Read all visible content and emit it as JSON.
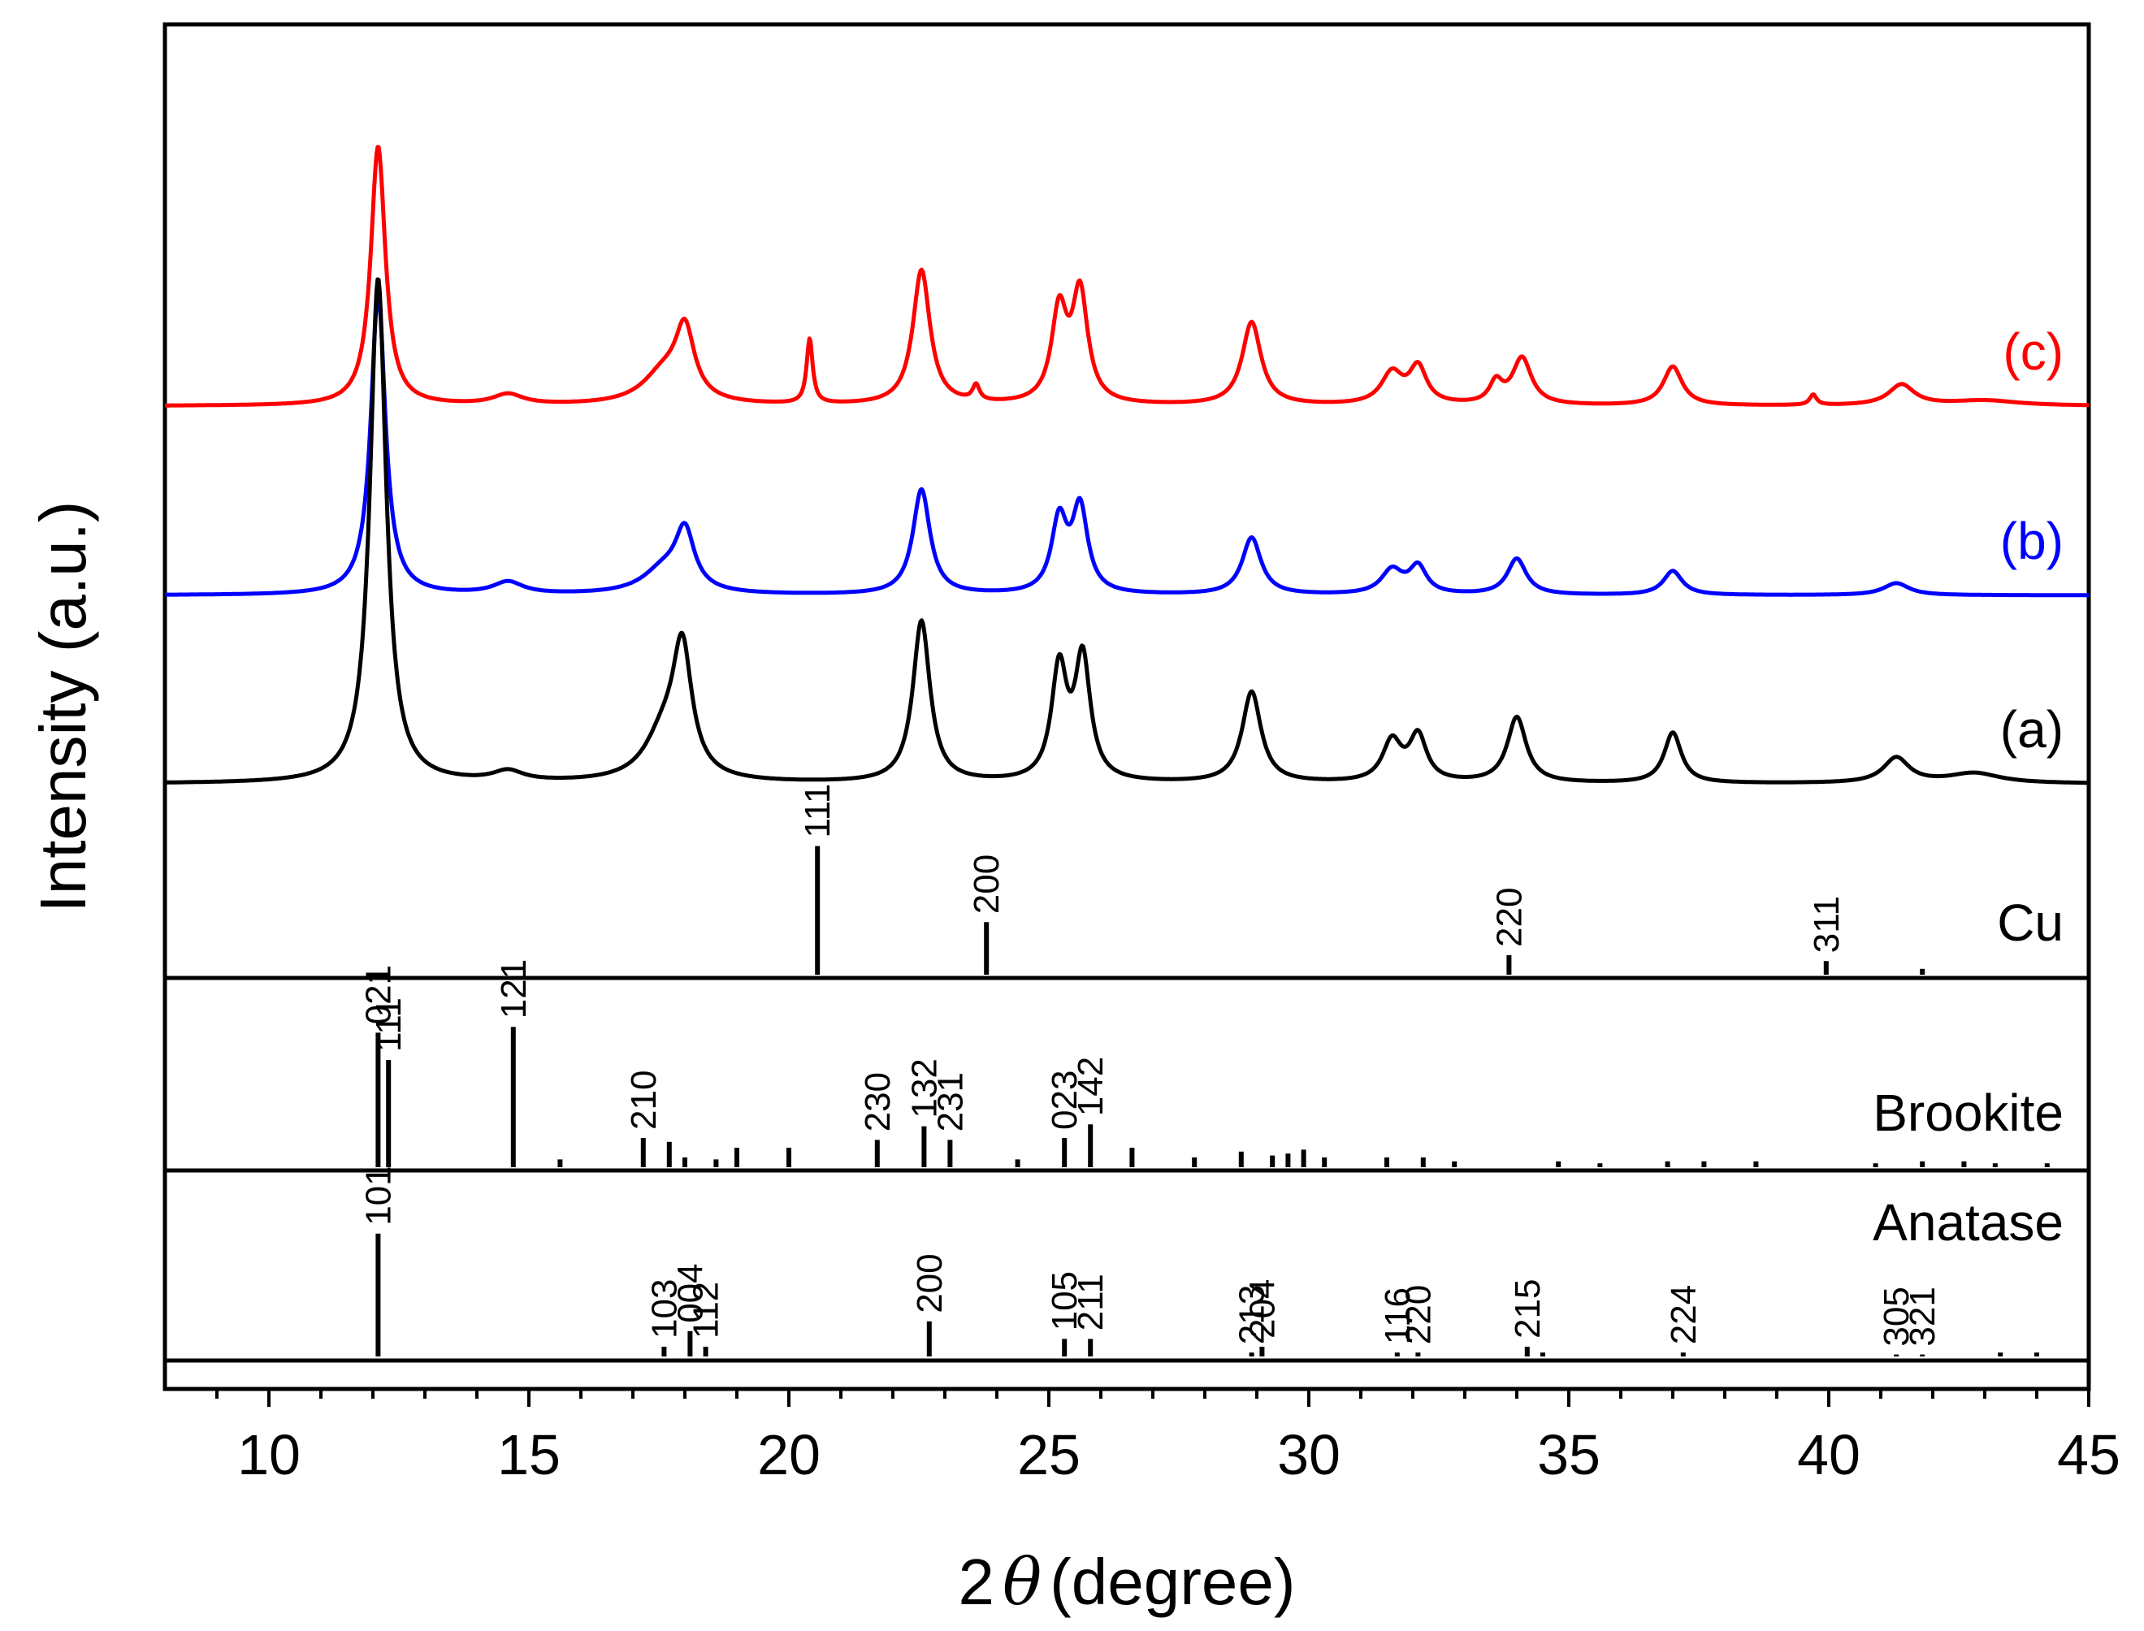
{
  "chart_data": {
    "type": "line",
    "title": "",
    "xlabel_prefix": "2",
    "xlabel_symbol": "θ",
    "xlabel_suffix": "(degree)",
    "ylabel": "Intensity (a.u.)",
    "xlim": [
      8,
      45
    ],
    "xticks": [
      10,
      15,
      20,
      25,
      30,
      35,
      40,
      45
    ],
    "grid": false,
    "series": [
      {
        "name": "(c)",
        "color": "#ff0000",
        "max_height": 0.19,
        "peaks": [
          [
            12.1,
            1.0,
            0.17
          ],
          [
            14.6,
            0.04,
            0.35
          ],
          [
            17.6,
            0.12,
            0.5
          ],
          [
            18.0,
            0.26,
            0.22
          ],
          [
            20.4,
            0.25,
            0.07
          ],
          [
            22.55,
            0.52,
            0.2
          ],
          [
            23.6,
            0.06,
            0.08
          ],
          [
            25.2,
            0.35,
            0.18
          ],
          [
            25.6,
            0.42,
            0.18
          ],
          [
            28.9,
            0.32,
            0.22
          ],
          [
            31.6,
            0.12,
            0.25
          ],
          [
            32.1,
            0.14,
            0.2
          ],
          [
            33.6,
            0.08,
            0.15
          ],
          [
            34.1,
            0.18,
            0.22
          ],
          [
            37.0,
            0.15,
            0.22
          ],
          [
            39.7,
            0.04,
            0.08
          ],
          [
            41.4,
            0.08,
            0.3
          ],
          [
            43.0,
            0.02,
            0.8
          ]
        ]
      },
      {
        "name": "(b)",
        "color": "#0000ff",
        "max_height": 0.22,
        "peaks": [
          [
            12.1,
            1.0,
            0.17
          ],
          [
            14.6,
            0.04,
            0.35
          ],
          [
            17.6,
            0.08,
            0.5
          ],
          [
            18.0,
            0.19,
            0.22
          ],
          [
            22.55,
            0.35,
            0.2
          ],
          [
            25.2,
            0.24,
            0.18
          ],
          [
            25.6,
            0.28,
            0.18
          ],
          [
            28.9,
            0.19,
            0.22
          ],
          [
            31.6,
            0.08,
            0.25
          ],
          [
            32.1,
            0.09,
            0.2
          ],
          [
            34.0,
            0.12,
            0.22
          ],
          [
            37.0,
            0.08,
            0.22
          ],
          [
            41.3,
            0.04,
            0.3
          ]
        ]
      },
      {
        "name": "(a)",
        "color": "#000000",
        "max_height": 0.37,
        "peaks": [
          [
            12.1,
            1.0,
            0.19
          ],
          [
            14.6,
            0.02,
            0.35
          ],
          [
            17.6,
            0.09,
            0.45
          ],
          [
            17.95,
            0.24,
            0.22
          ],
          [
            22.55,
            0.32,
            0.2
          ],
          [
            25.2,
            0.22,
            0.18
          ],
          [
            25.65,
            0.24,
            0.18
          ],
          [
            28.9,
            0.18,
            0.22
          ],
          [
            31.6,
            0.08,
            0.22
          ],
          [
            32.1,
            0.09,
            0.2
          ],
          [
            34.0,
            0.13,
            0.22
          ],
          [
            37.0,
            0.1,
            0.2
          ],
          [
            41.3,
            0.05,
            0.3
          ],
          [
            42.8,
            0.02,
            0.6
          ]
        ]
      }
    ],
    "reference_panels": [
      {
        "name": "Cu",
        "lines": [
          {
            "x": 20.55,
            "h": 0.66,
            "hkl": "111"
          },
          {
            "x": 23.8,
            "h": 0.27,
            "hkl": "200"
          },
          {
            "x": 33.85,
            "h": 0.1,
            "hkl": "220"
          },
          {
            "x": 39.95,
            "h": 0.07,
            "hkl": "311"
          },
          {
            "x": 41.8,
            "h": 0.03,
            "hkl": ""
          }
        ]
      },
      {
        "name": "Brookite",
        "lines": [
          {
            "x": 12.1,
            "h": 0.69,
            "hkl": "021"
          },
          {
            "x": 12.3,
            "h": 0.55,
            "hkl": "111"
          },
          {
            "x": 14.7,
            "h": 0.72,
            "hkl": "121"
          },
          {
            "x": 15.6,
            "h": 0.04,
            "hkl": ""
          },
          {
            "x": 17.2,
            "h": 0.15,
            "hkl": "210"
          },
          {
            "x": 17.7,
            "h": 0.13,
            "hkl": ""
          },
          {
            "x": 18.0,
            "h": 0.05,
            "hkl": ""
          },
          {
            "x": 18.6,
            "h": 0.04,
            "hkl": ""
          },
          {
            "x": 19.0,
            "h": 0.1,
            "hkl": ""
          },
          {
            "x": 20.0,
            "h": 0.1,
            "hkl": ""
          },
          {
            "x": 21.7,
            "h": 0.14,
            "hkl": "230"
          },
          {
            "x": 22.6,
            "h": 0.21,
            "hkl": "132"
          },
          {
            "x": 23.1,
            "h": 0.14,
            "hkl": "231"
          },
          {
            "x": 24.4,
            "h": 0.04,
            "hkl": ""
          },
          {
            "x": 25.3,
            "h": 0.15,
            "hkl": "023"
          },
          {
            "x": 25.8,
            "h": 0.22,
            "hkl": "142"
          },
          {
            "x": 26.6,
            "h": 0.1,
            "hkl": ""
          },
          {
            "x": 27.8,
            "h": 0.05,
            "hkl": ""
          },
          {
            "x": 28.7,
            "h": 0.08,
            "hkl": ""
          },
          {
            "x": 29.3,
            "h": 0.06,
            "hkl": ""
          },
          {
            "x": 29.6,
            "h": 0.07,
            "hkl": ""
          },
          {
            "x": 29.9,
            "h": 0.09,
            "hkl": ""
          },
          {
            "x": 30.3,
            "h": 0.05,
            "hkl": ""
          },
          {
            "x": 31.5,
            "h": 0.05,
            "hkl": ""
          },
          {
            "x": 32.2,
            "h": 0.05,
            "hkl": ""
          },
          {
            "x": 32.8,
            "h": 0.03,
            "hkl": ""
          },
          {
            "x": 34.8,
            "h": 0.03,
            "hkl": ""
          },
          {
            "x": 35.6,
            "h": 0.02,
            "hkl": ""
          },
          {
            "x": 36.9,
            "h": 0.03,
            "hkl": ""
          },
          {
            "x": 37.6,
            "h": 0.03,
            "hkl": ""
          },
          {
            "x": 38.6,
            "h": 0.03,
            "hkl": ""
          },
          {
            "x": 40.9,
            "h": 0.02,
            "hkl": ""
          },
          {
            "x": 41.8,
            "h": 0.03,
            "hkl": ""
          },
          {
            "x": 42.6,
            "h": 0.03,
            "hkl": ""
          },
          {
            "x": 43.2,
            "h": 0.02,
            "hkl": ""
          },
          {
            "x": 44.2,
            "h": 0.02,
            "hkl": ""
          }
        ]
      },
      {
        "name": "Anatase",
        "lines": [
          {
            "x": 12.1,
            "h": 0.63,
            "hkl": "101"
          },
          {
            "x": 17.6,
            "h": 0.05,
            "hkl": "103"
          },
          {
            "x": 18.1,
            "h": 0.13,
            "hkl": "004"
          },
          {
            "x": 18.4,
            "h": 0.05,
            "hkl": "112"
          },
          {
            "x": 22.7,
            "h": 0.18,
            "hkl": "200"
          },
          {
            "x": 25.3,
            "h": 0.09,
            "hkl": "105"
          },
          {
            "x": 25.8,
            "h": 0.09,
            "hkl": "211"
          },
          {
            "x": 28.9,
            "h": 0.02,
            "hkl": "213"
          },
          {
            "x": 29.1,
            "h": 0.05,
            "hkl": "204"
          },
          {
            "x": 31.7,
            "h": 0.02,
            "hkl": "116"
          },
          {
            "x": 32.1,
            "h": 0.02,
            "hkl": "220"
          },
          {
            "x": 34.2,
            "h": 0.05,
            "hkl": "215"
          },
          {
            "x": 34.5,
            "h": 0.02,
            "hkl": ""
          },
          {
            "x": 37.2,
            "h": 0.02,
            "hkl": "224"
          },
          {
            "x": 41.3,
            "h": 0.01,
            "hkl": "305"
          },
          {
            "x": 41.8,
            "h": 0.01,
            "hkl": "321"
          },
          {
            "x": 43.3,
            "h": 0.02,
            "hkl": ""
          },
          {
            "x": 44.0,
            "h": 0.02,
            "hkl": ""
          }
        ]
      }
    ]
  }
}
